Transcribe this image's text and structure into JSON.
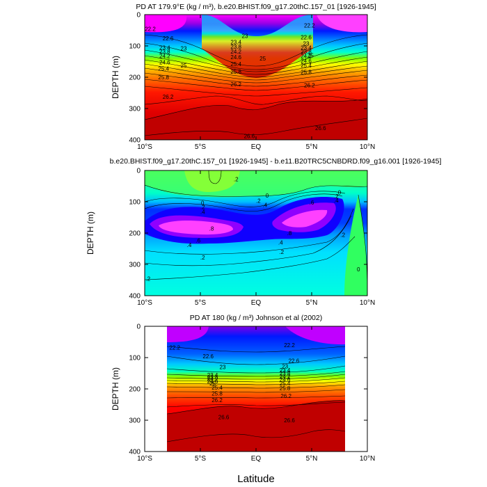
{
  "chart_data": [
    {
      "type": "heatmap",
      "id": "p1",
      "title": "PD AT 179.9°E (kg / m³), b.e20.BHIST.f09_g17.20thC.157_01 [1926-1945]",
      "xlabel": "",
      "ylabel": "DEPTH (m)",
      "xlim": [
        -10,
        10
      ],
      "ylim": [
        400,
        0
      ],
      "x_ticks": [
        -10,
        -5,
        0,
        5,
        10
      ],
      "x_tick_labels": [
        "10°S",
        "5°S",
        "EQ",
        "5°N",
        "10°N"
      ],
      "y_ticks": [
        0,
        100,
        200,
        300,
        400
      ],
      "y_tick_labels": [
        "0",
        "100",
        "200",
        "300",
        "400"
      ],
      "data_xlim": [
        -10,
        10
      ],
      "contour_labels": [
        {
          "x": -9.5,
          "y": 45,
          "text": "22.2"
        },
        {
          "x": -7.9,
          "y": 75,
          "text": "22.6"
        },
        {
          "x": -8.2,
          "y": 105,
          "text": "23.4"
        },
        {
          "x": -8.2,
          "y": 118,
          "text": "23.8"
        },
        {
          "x": -8.2,
          "y": 132,
          "text": "24.2"
        },
        {
          "x": -8.2,
          "y": 152,
          "text": "24.6"
        },
        {
          "x": -6.5,
          "y": 108,
          "text": "23"
        },
        {
          "x": -6.5,
          "y": 162,
          "text": "25"
        },
        {
          "x": -8.3,
          "y": 172,
          "text": "25.4"
        },
        {
          "x": -8.3,
          "y": 200,
          "text": "25.8"
        },
        {
          "x": -7.9,
          "y": 262,
          "text": "26.2"
        },
        {
          "x": -1.0,
          "y": 68,
          "text": "23"
        },
        {
          "x": -1.8,
          "y": 88,
          "text": "23.4"
        },
        {
          "x": -1.8,
          "y": 102,
          "text": "23.8"
        },
        {
          "x": -1.8,
          "y": 118,
          "text": "24.2"
        },
        {
          "x": -1.8,
          "y": 135,
          "text": "24.6"
        },
        {
          "x": 0.6,
          "y": 140,
          "text": "25"
        },
        {
          "x": -1.8,
          "y": 158,
          "text": "25.4"
        },
        {
          "x": -1.8,
          "y": 182,
          "text": "25.8"
        },
        {
          "x": -1.8,
          "y": 222,
          "text": "26.2"
        },
        {
          "x": 4.8,
          "y": 34,
          "text": "22.2"
        },
        {
          "x": 4.5,
          "y": 72,
          "text": "22.6"
        },
        {
          "x": 4.5,
          "y": 92,
          "text": "23"
        },
        {
          "x": 4.5,
          "y": 105,
          "text": "23.4"
        },
        {
          "x": 4.5,
          "y": 118,
          "text": "23.8"
        },
        {
          "x": 4.5,
          "y": 132,
          "text": "24.2"
        },
        {
          "x": 4.5,
          "y": 148,
          "text": "24.6"
        },
        {
          "x": 4.9,
          "y": 130,
          "text": "25"
        },
        {
          "x": 4.5,
          "y": 162,
          "text": "25.4"
        },
        {
          "x": 4.5,
          "y": 183,
          "text": "25.8"
        },
        {
          "x": 4.8,
          "y": 225,
          "text": "26.2"
        },
        {
          "x": -0.6,
          "y": 388,
          "text": "26.6"
        },
        {
          "x": 5.8,
          "y": 362,
          "text": "26.6"
        }
      ]
    },
    {
      "type": "heatmap",
      "id": "p2",
      "title": "b.e20.BHIST.f09_g17.20thC.157_01 [1926-1945] - b.e11.B20TRC5CNBDRD.f09_g16.001 [1926-1945]",
      "xlabel": "",
      "ylabel": "DEPTH (m)",
      "xlim": [
        -10,
        10
      ],
      "ylim": [
        400,
        0
      ],
      "x_ticks": [
        -10,
        -5,
        0,
        5,
        10
      ],
      "x_tick_labels": [
        "10°S",
        "5°S",
        "EQ",
        "5°N",
        "10°N"
      ],
      "y_ticks": [
        0,
        100,
        200,
        300,
        400
      ],
      "y_tick_labels": [
        "0",
        "100",
        "200",
        "300",
        "400"
      ],
      "data_xlim": [
        -10,
        10
      ],
      "contour_labels": [
        {
          "x": -1.8,
          "y": 28,
          "text": ".2"
        },
        {
          "x": -4.8,
          "y": 103,
          "text": "0"
        },
        {
          "x": -4.8,
          "y": 117,
          "text": ".2"
        },
        {
          "x": -4.8,
          "y": 132,
          "text": ".4"
        },
        {
          "x": -5.2,
          "y": 223,
          "text": ".6"
        },
        {
          "x": -4.0,
          "y": 185,
          "text": ".8"
        },
        {
          "x": -6.0,
          "y": 238,
          "text": ".4"
        },
        {
          "x": -4.8,
          "y": 278,
          "text": ".2"
        },
        {
          "x": -9.7,
          "y": 346,
          "text": ".2"
        },
        {
          "x": 1.0,
          "y": 80,
          "text": "0"
        },
        {
          "x": 0.2,
          "y": 97,
          "text": ".2"
        },
        {
          "x": 0.8,
          "y": 110,
          "text": ".4"
        },
        {
          "x": 2.2,
          "y": 230,
          "text": ".4"
        },
        {
          "x": 2.3,
          "y": 260,
          "text": ".2"
        },
        {
          "x": 5.0,
          "y": 102,
          "text": ".6"
        },
        {
          "x": 3.0,
          "y": 200,
          "text": ".8"
        },
        {
          "x": 7.2,
          "y": 82,
          "text": ".2"
        },
        {
          "x": 7.2,
          "y": 95,
          "text": ".4"
        },
        {
          "x": 7.5,
          "y": 70,
          "text": "0"
        },
        {
          "x": 7.8,
          "y": 205,
          "text": ".2"
        },
        {
          "x": 9.2,
          "y": 316,
          "text": "0"
        }
      ]
    },
    {
      "type": "heatmap",
      "id": "p3",
      "title": "PD AT 180 (kg / m³) Johnson et al (2002)",
      "xlabel": "Latitude",
      "ylabel": "DEPTH (m)",
      "xlim": [
        -10,
        10
      ],
      "ylim": [
        400,
        0
      ],
      "x_ticks": [
        -10,
        -5,
        0,
        5,
        10
      ],
      "x_tick_labels": [
        "10°S",
        "5°S",
        "EQ",
        "5°N",
        "10°N"
      ],
      "y_ticks": [
        0,
        100,
        200,
        300,
        400
      ],
      "y_tick_labels": [
        "0",
        "100",
        "200",
        "300",
        "400"
      ],
      "data_xlim": [
        -8,
        8
      ],
      "contour_labels": [
        {
          "x": -7.3,
          "y": 68,
          "text": "22.2"
        },
        {
          "x": -4.3,
          "y": 96,
          "text": "22.6"
        },
        {
          "x": -3.0,
          "y": 130,
          "text": "23"
        },
        {
          "x": -3.9,
          "y": 155,
          "text": "23.4"
        },
        {
          "x": -3.9,
          "y": 162,
          "text": "23.8"
        },
        {
          "x": -3.9,
          "y": 168,
          "text": "24.2"
        },
        {
          "x": -3.9,
          "y": 175,
          "text": "24.6"
        },
        {
          "x": -3.9,
          "y": 182,
          "text": "25"
        },
        {
          "x": -3.5,
          "y": 196,
          "text": "25.4"
        },
        {
          "x": -3.5,
          "y": 214,
          "text": "25.8"
        },
        {
          "x": -3.5,
          "y": 236,
          "text": "26.2"
        },
        {
          "x": -2.9,
          "y": 290,
          "text": "26.6"
        },
        {
          "x": 3.0,
          "y": 60,
          "text": "22.2"
        },
        {
          "x": 3.4,
          "y": 110,
          "text": "22.6"
        },
        {
          "x": 2.6,
          "y": 128,
          "text": "23"
        },
        {
          "x": 2.6,
          "y": 140,
          "text": "23.4"
        },
        {
          "x": 2.6,
          "y": 150,
          "text": "23.8"
        },
        {
          "x": 2.6,
          "y": 160,
          "text": "24.2"
        },
        {
          "x": 2.6,
          "y": 170,
          "text": "24.6"
        },
        {
          "x": 2.6,
          "y": 182,
          "text": "25.4"
        },
        {
          "x": 2.6,
          "y": 198,
          "text": "25.8"
        },
        {
          "x": 2.7,
          "y": 222,
          "text": "26.2"
        },
        {
          "x": 3.0,
          "y": 300,
          "text": "26.6"
        }
      ]
    }
  ]
}
